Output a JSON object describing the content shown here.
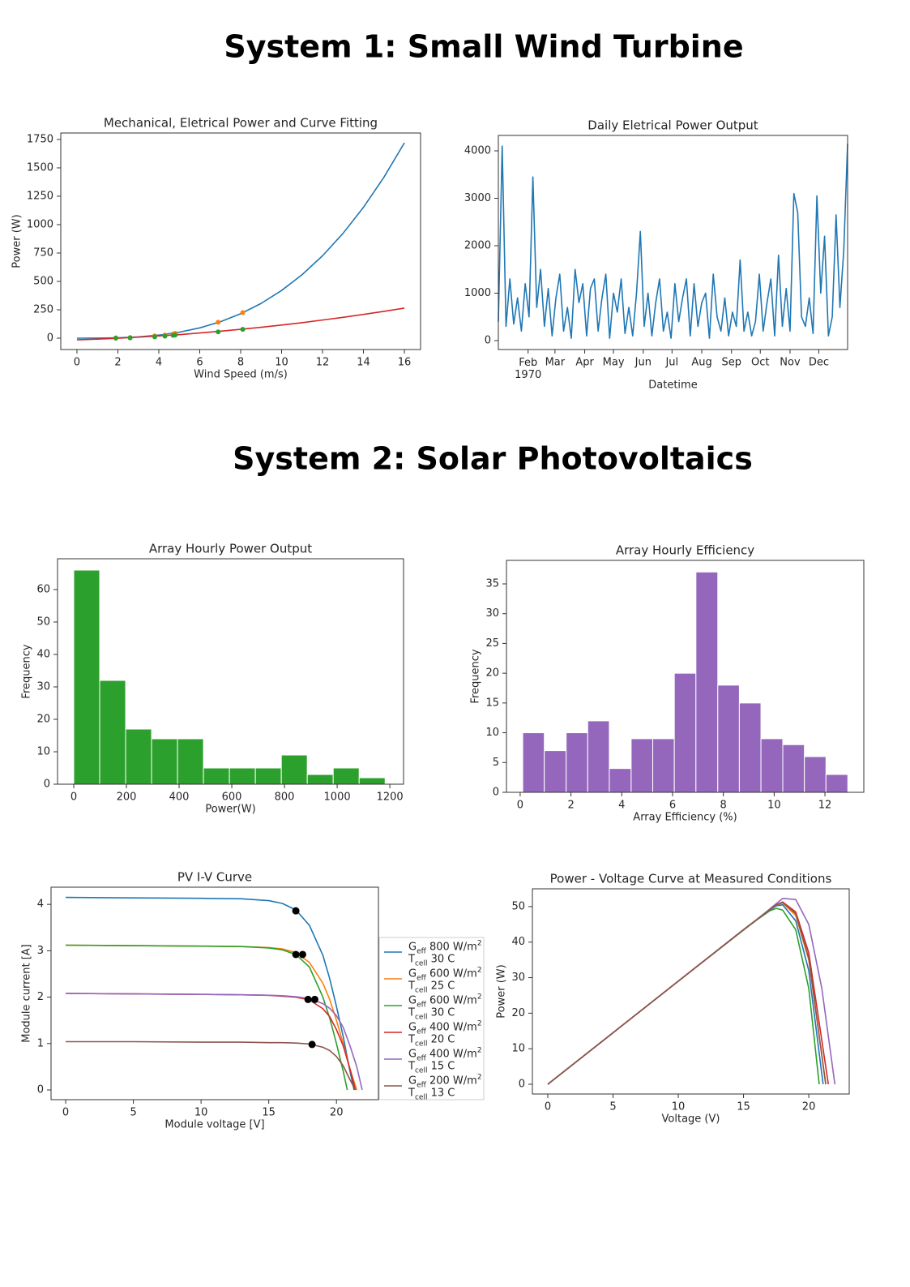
{
  "headings": [
    "System 1: Small Wind Turbine",
    "System 2: Solar Photovoltaics"
  ],
  "chart_data": [
    {
      "type": "line",
      "title": "Mechanical, Eletrical Power and Curve Fitting",
      "xlabel": "Wind Speed (m/s)",
      "ylabel": "Power (W)",
      "xlim": [
        -0.79,
        16.79
      ],
      "ylim": [
        -100,
        1807
      ],
      "xticks": [
        0,
        2,
        4,
        6,
        8,
        10,
        12,
        14,
        16
      ],
      "yticks": [
        0,
        250,
        500,
        750,
        1000,
        1250,
        1500,
        1750
      ],
      "series": [
        {
          "kind": "line",
          "color": "#1f77b4",
          "x": [
            0,
            1,
            2,
            3,
            4,
            5,
            6,
            7,
            8,
            9,
            10,
            11,
            12,
            13,
            14,
            15,
            16
          ],
          "values": [
            0,
            0.4,
            3.4,
            11.3,
            26.9,
            52.5,
            90.7,
            144.1,
            215.0,
            306.2,
            420,
            559.0,
            725.8,
            922.7,
            1152.5,
            1417.5,
            1720.3
          ]
        },
        {
          "kind": "line",
          "color": "#d62728",
          "x": [
            0,
            1,
            2,
            3,
            4,
            5,
            6,
            7,
            8,
            9,
            10,
            11,
            12,
            13,
            14,
            15,
            16
          ],
          "values": [
            -15,
            -8.5,
            -0.6,
            8.9,
            19.7,
            31.1,
            45.9,
            61.2,
            78.0,
            96.2,
            115.9,
            136.1,
            159.7,
            183.8,
            209.4,
            236.4,
            265.0
          ]
        },
        {
          "kind": "scatter",
          "color": "#ff7f0e",
          "x": [
            1.9,
            2.6,
            3.8,
            4.3,
            4.7,
            4.8,
            6.9,
            8.1
          ],
          "values": [
            3,
            5,
            20,
            28,
            37,
            42,
            140,
            225
          ]
        },
        {
          "kind": "scatter",
          "color": "#2ca02c",
          "x": [
            1.9,
            2.6,
            3.8,
            4.3,
            4.7,
            4.8,
            6.9,
            8.1
          ],
          "values": [
            0,
            3,
            12,
            18,
            25,
            28,
            55,
            78
          ]
        }
      ]
    },
    {
      "type": "line",
      "title": "Daily Eletrical Power Output",
      "xlabel": "Datetime",
      "xlim": [
        0,
        364
      ],
      "ylim": [
        -188,
        4325
      ],
      "xticks": [
        {
          "value": 31,
          "label": "Feb\n1970"
        },
        {
          "value": 59,
          "label": "Mar"
        },
        {
          "value": 90,
          "label": "Apr"
        },
        {
          "value": 120,
          "label": "May"
        },
        {
          "value": 151,
          "label": "Jun"
        },
        {
          "value": 181,
          "label": "Jul"
        },
        {
          "value": 212,
          "label": "Aug"
        },
        {
          "value": 243,
          "label": "Sep"
        },
        {
          "value": 273,
          "label": "Oct"
        },
        {
          "value": 304,
          "label": "Nov"
        },
        {
          "value": 334,
          "label": "Dec"
        }
      ],
      "yticks": [
        0,
        1000,
        2000,
        3000,
        4000
      ],
      "x": [
        0,
        4,
        8,
        12,
        16,
        20,
        24,
        28,
        32,
        36,
        40,
        44,
        48,
        52,
        56,
        60,
        64,
        68,
        72,
        76,
        80,
        84,
        88,
        92,
        96,
        100,
        104,
        108,
        112,
        116,
        120,
        124,
        128,
        132,
        136,
        140,
        144,
        148,
        152,
        156,
        160,
        164,
        168,
        172,
        176,
        180,
        184,
        188,
        192,
        196,
        200,
        204,
        208,
        212,
        216,
        220,
        224,
        228,
        232,
        236,
        240,
        244,
        248,
        252,
        256,
        260,
        264,
        268,
        272,
        276,
        280,
        284,
        288,
        292,
        296,
        300,
        304,
        308,
        312,
        316,
        320,
        324,
        328,
        332,
        336,
        340,
        344,
        348,
        352,
        356,
        360,
        364
      ],
      "series": [
        {
          "kind": "line",
          "color": "#1f77b4",
          "values": [
            400,
            4100,
            300,
            1300,
            350,
            900,
            200,
            1200,
            500,
            3450,
            700,
            1500,
            300,
            1100,
            100,
            900,
            1400,
            200,
            700,
            50,
            1500,
            800,
            1200,
            100,
            1100,
            1300,
            200,
            900,
            1400,
            50,
            1000,
            600,
            1300,
            150,
            700,
            100,
            1000,
            2300,
            300,
            1000,
            100,
            800,
            1300,
            200,
            600,
            50,
            1200,
            400,
            900,
            1300,
            100,
            1200,
            300,
            800,
            1000,
            50,
            1400,
            500,
            200,
            900,
            100,
            600,
            300,
            1700,
            200,
            600,
            100,
            400,
            1400,
            200,
            800,
            1300,
            100,
            1800,
            300,
            1100,
            200,
            3100,
            2700,
            500,
            300,
            900,
            150,
            3050,
            1000,
            2200,
            100,
            500,
            2650,
            700,
            1900,
            4150
          ]
        }
      ]
    },
    {
      "type": "histogram",
      "title": "Array Hourly Power Output",
      "xlabel": "Power(W)",
      "ylabel": "Frequency",
      "color": "#2ca02c",
      "xlim": [
        -61.5,
        1252
      ],
      "ylim": [
        0,
        69.5
      ],
      "xticks": [
        0,
        200,
        400,
        600,
        800,
        1000,
        1200
      ],
      "yticks": [
        0,
        10,
        20,
        30,
        40,
        50,
        60
      ],
      "bins": [
        0,
        98.5,
        197,
        295.5,
        394,
        492.5,
        591,
        689.5,
        788,
        886.5,
        985,
        1083.5,
        1182
      ],
      "counts": [
        66,
        32,
        17,
        14,
        14,
        5,
        5,
        5,
        9,
        3,
        5,
        2
      ]
    },
    {
      "type": "histogram",
      "title": "Array Hourly Efficiency",
      "xlabel": "Array Efficiency (%)",
      "ylabel": "Frequency",
      "color": "#9467bd",
      "xlim": [
        -0.54,
        13.53
      ],
      "ylim": [
        0,
        38.95
      ],
      "xticks": [
        0,
        2,
        4,
        6,
        8,
        10,
        12
      ],
      "yticks": [
        0,
        5,
        10,
        15,
        20,
        25,
        30,
        35
      ],
      "bins": [
        0.1,
        0.95,
        1.81,
        2.66,
        3.51,
        4.37,
        5.22,
        6.07,
        6.92,
        7.78,
        8.63,
        9.48,
        10.34,
        11.19,
        12.04,
        12.9
      ],
      "counts": [
        10,
        7,
        10,
        12,
        4,
        9,
        9,
        20,
        37,
        18,
        15,
        9,
        8,
        6,
        3
      ]
    },
    {
      "type": "line",
      "title": "PV I-V Curve",
      "xlabel": "Module voltage [V]",
      "ylabel": "Module current [A]",
      "legend": "outside",
      "xlim": [
        -1.08,
        23.1
      ],
      "ylim": [
        -0.21,
        4.37
      ],
      "xticks": [
        0,
        5,
        10,
        15,
        20
      ],
      "yticks": [
        0,
        1,
        2,
        3,
        4
      ],
      "series": [
        {
          "kind": "line",
          "name": "Geff 800 W/m2\nTcell 30 C",
          "color": "#1f77b4",
          "x": [
            0,
            5,
            10,
            13,
            15,
            16,
            17,
            18,
            19,
            19.5,
            20,
            20.5,
            21,
            21.3
          ],
          "values": [
            4.15,
            4.14,
            4.13,
            4.12,
            4.08,
            4.02,
            3.88,
            3.55,
            2.9,
            2.4,
            1.8,
            1.15,
            0.4,
            0
          ]
        },
        {
          "kind": "line",
          "name": "Geff 600 W/m2\nTcell 25 C",
          "color": "#ff7f0e",
          "x": [
            0,
            5,
            10,
            13,
            15,
            16,
            17,
            18,
            19,
            19.5,
            20,
            20.5,
            21,
            21.5
          ],
          "values": [
            3.12,
            3.11,
            3.1,
            3.09,
            3.07,
            3.04,
            2.96,
            2.75,
            2.3,
            1.95,
            1.5,
            1.0,
            0.45,
            0
          ]
        },
        {
          "kind": "line",
          "name": "Geff 600 W/m2\nTcell 30 C",
          "color": "#2ca02c",
          "x": [
            0,
            5,
            10,
            13,
            15,
            16,
            17,
            18,
            19,
            19.5,
            20,
            20.5,
            20.8
          ],
          "values": [
            3.12,
            3.11,
            3.1,
            3.09,
            3.06,
            3.02,
            2.92,
            2.65,
            2.0,
            1.55,
            1.0,
            0.4,
            0
          ]
        },
        {
          "kind": "line",
          "name": "Geff 400 W/m2\nTcell 20 C",
          "color": "#d62728",
          "x": [
            0,
            5,
            10,
            13,
            15,
            16,
            17,
            18,
            19,
            19.5,
            20,
            20.5,
            21,
            21.4
          ],
          "values": [
            2.08,
            2.07,
            2.06,
            2.05,
            2.04,
            2.02,
            2.0,
            1.94,
            1.75,
            1.58,
            1.3,
            0.95,
            0.45,
            0
          ]
        },
        {
          "kind": "line",
          "name": "Geff 400 W/m2\nTcell 15 C",
          "color": "#9467bd",
          "x": [
            0,
            5,
            10,
            13,
            15,
            16,
            17,
            18,
            19,
            19.5,
            20,
            20.5,
            21,
            21.5,
            21.9
          ],
          "values": [
            2.08,
            2.07,
            2.06,
            2.05,
            2.04,
            2.03,
            2.01,
            1.97,
            1.86,
            1.76,
            1.6,
            1.35,
            0.95,
            0.5,
            0
          ]
        },
        {
          "kind": "line",
          "name": "Geff 200 W/m2\nTcell 13 C",
          "color": "#8c564b",
          "x": [
            0,
            5,
            10,
            13,
            15,
            16,
            17,
            18,
            19,
            19.5,
            20,
            20.5,
            21,
            21.4
          ],
          "values": [
            1.04,
            1.04,
            1.03,
            1.03,
            1.02,
            1.02,
            1.01,
            0.99,
            0.92,
            0.85,
            0.72,
            0.52,
            0.22,
            0
          ]
        },
        {
          "kind": "scatter",
          "color": "#000000",
          "x": [
            17.0,
            17.0,
            17.5,
            17.9,
            18.4,
            18.2
          ],
          "values": [
            3.86,
            2.92,
            2.92,
            1.95,
            1.95,
            0.98
          ]
        }
      ]
    },
    {
      "type": "line",
      "title": "Power - Voltage Curve at Measured Conditions",
      "xlabel": "Voltage (V)",
      "ylabel": "Power (W)",
      "xlim": [
        -1.18,
        23.1
      ],
      "ylim": [
        -2.74,
        55.0
      ],
      "xticks": [
        0,
        5,
        10,
        15,
        20
      ],
      "yticks": [
        0,
        10,
        20,
        30,
        40,
        50
      ],
      "series": [
        {
          "kind": "line",
          "color": "#1f77b4",
          "x": [
            0,
            5,
            10,
            15,
            16,
            17,
            17.5,
            18,
            19,
            20,
            21.1
          ],
          "values": [
            0,
            14.5,
            29,
            43.5,
            46.3,
            49.0,
            50.2,
            50.5,
            46,
            32,
            0
          ]
        },
        {
          "kind": "line",
          "color": "#ff7f0e",
          "x": [
            0,
            5,
            10,
            15,
            16,
            17,
            17.5,
            18,
            19,
            20,
            21.3
          ],
          "values": [
            0,
            14.5,
            29,
            43.5,
            46.3,
            49.1,
            50.4,
            51,
            47.5,
            35,
            0
          ]
        },
        {
          "kind": "line",
          "color": "#2ca02c",
          "x": [
            0,
            5,
            10,
            15,
            16,
            17,
            17.5,
            18,
            19,
            20,
            20.8
          ],
          "values": [
            0,
            14.5,
            29,
            43.4,
            46.2,
            48.8,
            49.5,
            49.0,
            43.5,
            27,
            0
          ]
        },
        {
          "kind": "line",
          "color": "#d62728",
          "x": [
            0,
            5,
            10,
            15,
            16,
            17,
            17.5,
            18,
            19,
            20,
            21.5
          ],
          "values": [
            0,
            14.5,
            29,
            43.5,
            46.3,
            49.2,
            50.5,
            51.3,
            48.5,
            37,
            0
          ]
        },
        {
          "kind": "line",
          "color": "#9467bd",
          "x": [
            0,
            5,
            10,
            15,
            16,
            17,
            17.5,
            18,
            19,
            20,
            21,
            22
          ],
          "values": [
            0,
            14.5,
            29,
            43.5,
            46.3,
            49.3,
            50.8,
            52.3,
            52,
            45,
            27,
            0
          ]
        },
        {
          "kind": "line",
          "color": "#8c564b",
          "x": [
            0,
            5,
            10,
            15,
            16,
            17,
            17.5,
            18,
            19,
            20,
            21.3
          ],
          "values": [
            0,
            14.5,
            29,
            43.5,
            46.3,
            49.1,
            50.5,
            51.2,
            48,
            35.5,
            0
          ]
        }
      ]
    }
  ]
}
